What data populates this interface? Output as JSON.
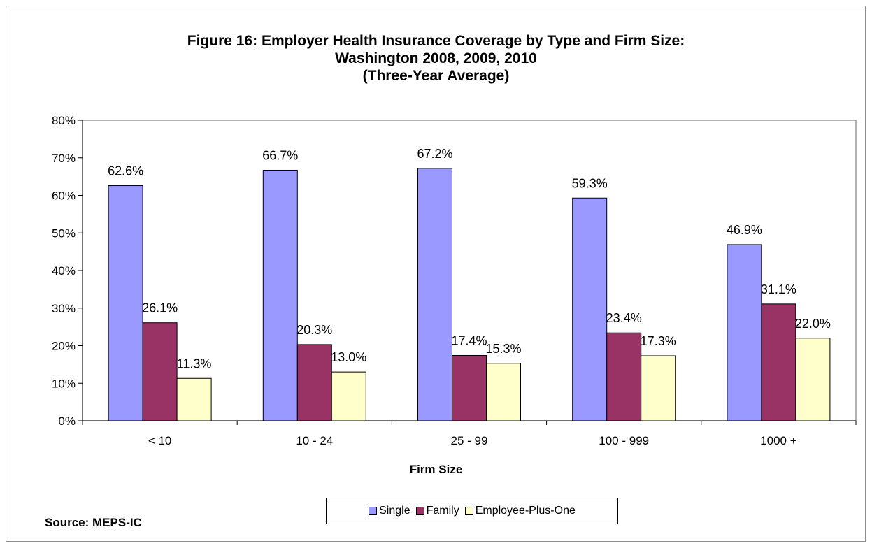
{
  "chart_data": {
    "type": "bar",
    "title": [
      "Figure 16:  Employer Health Insurance Coverage by Type and Firm Size:",
      "Washington  2008, 2009, 2010",
      "(Three-Year Average)"
    ],
    "xlabel": "Firm Size",
    "ylabel": "",
    "categories": [
      "< 10",
      "10 - 24",
      "25 - 99",
      "100 - 999",
      "1000 +"
    ],
    "series": [
      {
        "name": "Single",
        "color": "#9999ff",
        "values": [
          62.6,
          66.7,
          67.2,
          59.3,
          46.9
        ],
        "labels": [
          "62.6%",
          "66.7%",
          "67.2%",
          "59.3%",
          "46.9%"
        ]
      },
      {
        "name": "Family",
        "color": "#993366",
        "values": [
          26.1,
          20.3,
          17.4,
          23.4,
          31.1
        ],
        "labels": [
          "26.1%",
          "20.3%",
          "17.4%",
          "23.4%",
          "31.1%"
        ]
      },
      {
        "name": "Employee-Plus-One",
        "color": "#ffffcc",
        "values": [
          11.3,
          13.0,
          15.3,
          17.3,
          22.0
        ],
        "labels": [
          "11.3%",
          "13.0%",
          "15.3%",
          "17.3%",
          "22.0%"
        ]
      }
    ],
    "ylim": [
      0,
      80
    ],
    "yticks": [
      0,
      10,
      20,
      30,
      40,
      50,
      60,
      70,
      80
    ],
    "ytick_labels": [
      "0%",
      "10%",
      "20%",
      "30%",
      "40%",
      "50%",
      "60%",
      "70%",
      "80%"
    ],
    "grid": false,
    "legend_position": "bottom-center",
    "source": "Source:  MEPS-IC"
  }
}
